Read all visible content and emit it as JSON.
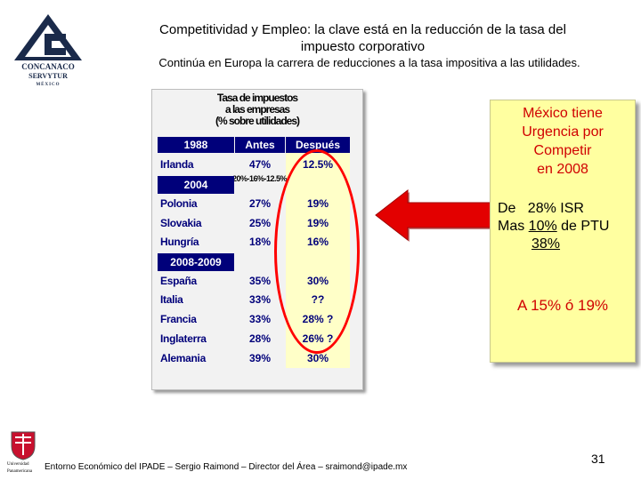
{
  "header": {
    "title_line1": "Competitividad y Empleo: la clave está en la reducción de la tasa del",
    "title_line2": "impuesto corporativo",
    "subtitle": "Continúa en Europa la carrera de reducciones a la tasa impositiva a las utilidades."
  },
  "logo": {
    "name": "CONCANACO",
    "sub": "SERVYTUR",
    "country": "MÉXICO"
  },
  "table": {
    "title_lines": [
      "Tasa de impuestos",
      "a las empresas",
      "(% sobre utilidades)"
    ],
    "headers": {
      "col_antes": "Antes",
      "col_despues": "Después"
    },
    "sections": [
      {
        "label": "1988",
        "rows": [
          {
            "country": "Irlanda",
            "antes": "47%",
            "despues": "12.5%"
          }
        ],
        "note": "20%-16%-12.5%"
      },
      {
        "label": "2004",
        "rows": [
          {
            "country": "Polonia",
            "antes": "27%",
            "despues": "19%"
          },
          {
            "country": "Slovakia",
            "antes": "25%",
            "despues": "19%"
          },
          {
            "country": "Hungría",
            "antes": "18%",
            "despues": "16%"
          }
        ]
      },
      {
        "label": "2008-2009",
        "rows": [
          {
            "country": "España",
            "antes": "35%",
            "despues": "30%"
          },
          {
            "country": "Italia",
            "antes": "33%",
            "despues": "??"
          },
          {
            "country": "Francia",
            "antes": "33%",
            "despues": "28% ?"
          },
          {
            "country": "Inglaterra",
            "antes": "28%",
            "despues": "26% ?"
          },
          {
            "country": "Alemania",
            "antes": "39%",
            "despues": "30%"
          }
        ]
      }
    ]
  },
  "note": {
    "urgency_lines": [
      "México tiene",
      "Urgencia por",
      "Competir",
      "en 2008"
    ],
    "calc_line1": "De   28% ISR",
    "calc_line2_a": "Mas ",
    "calc_line2_b": "10%",
    "calc_line2_c": " de PTU",
    "calc_line3": "38%",
    "target": "A 15% ó 19%"
  },
  "footer": {
    "logo_label1": "Universidad",
    "logo_label2": "Panamericana",
    "text": "Entorno Económico del IPADE – Sergio Raimond – Director del Área – sraimond@ipade.mx",
    "page": "31"
  },
  "colors": {
    "navy": "#00007a",
    "red": "#ff0000",
    "note_bg": "#ffffa0",
    "col_bg": "#ffffc8"
  }
}
